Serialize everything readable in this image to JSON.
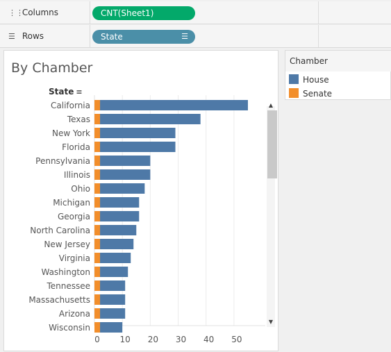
{
  "shelves": {
    "columns": {
      "label": "Columns",
      "pill": "CNT(Sheet1)"
    },
    "rows": {
      "label": "Rows",
      "pill": "State"
    }
  },
  "sheet": {
    "title": "By Chamber",
    "row_header": "State"
  },
  "legend": {
    "title": "Chamber",
    "items": [
      {
        "label": "House",
        "color": "#4e79a7"
      },
      {
        "label": "Senate",
        "color": "#f28e2b"
      }
    ]
  },
  "chart_data": {
    "type": "bar",
    "orientation": "horizontal",
    "stacked": true,
    "categories": [
      "California",
      "Texas",
      "New York",
      "Florida",
      "Pennsylvania",
      "Illinois",
      "Ohio",
      "Michigan",
      "Georgia",
      "North Carolina",
      "New Jersey",
      "Virginia",
      "Washington",
      "Tennessee",
      "Massachusetts",
      "Arizona",
      "Wisconsin"
    ],
    "series": [
      {
        "name": "Senate",
        "color": "#f28e2b",
        "values": [
          2,
          2,
          2,
          2,
          2,
          2,
          2,
          2,
          2,
          2,
          2,
          2,
          2,
          2,
          2,
          2,
          2
        ]
      },
      {
        "name": "House",
        "color": "#4e79a7",
        "values": [
          53,
          36,
          27,
          27,
          18,
          18,
          16,
          14,
          14,
          13,
          12,
          11,
          10,
          9,
          9,
          9,
          8
        ]
      }
    ],
    "xticks": [
      0,
      10,
      20,
      30,
      40,
      50
    ],
    "xlim": [
      0,
      57
    ],
    "grid": true,
    "legend": "right"
  }
}
